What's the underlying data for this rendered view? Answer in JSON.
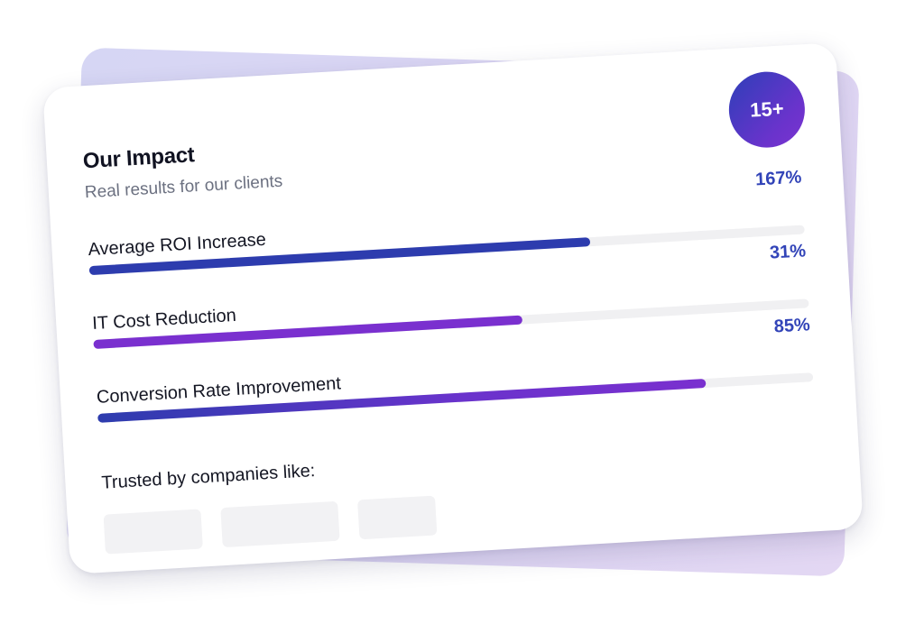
{
  "card": {
    "title": "Our Impact",
    "subtitle": "Real results for our clients",
    "badge": "15+"
  },
  "metrics": [
    {
      "label": "Average ROI Increase",
      "value": "167%",
      "fill_fraction": 0.7,
      "style": "blue"
    },
    {
      "label": "IT Cost Reduction",
      "value": "31%",
      "fill_fraction": 0.6,
      "style": "purple"
    },
    {
      "label": "Conversion Rate Improvement",
      "value": "85%",
      "fill_fraction": 0.85,
      "style": "gradient"
    }
  ],
  "trusted": {
    "label": "Trusted by companies like:",
    "logo_count": 3
  },
  "colors": {
    "accent_blue": "#2d3cae",
    "accent_purple": "#7a30cf",
    "value_text": "#3244b8",
    "back_card": "#dcd8f4"
  }
}
